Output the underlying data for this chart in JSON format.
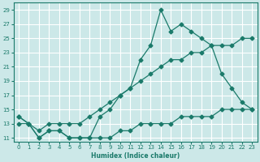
{
  "xlabel": "Humidex (Indice chaleur)",
  "background_color": "#cce8e8",
  "grid_color": "#ffffff",
  "line_color": "#1a7a6a",
  "xlim": [
    -0.5,
    23.5
  ],
  "ylim": [
    10.5,
    30
  ],
  "xticks": [
    0,
    1,
    2,
    3,
    4,
    5,
    6,
    7,
    8,
    9,
    10,
    11,
    12,
    13,
    14,
    15,
    16,
    17,
    18,
    19,
    20,
    21,
    22,
    23
  ],
  "yticks": [
    11,
    13,
    15,
    17,
    19,
    21,
    23,
    25,
    27,
    29
  ],
  "line_zigzag_x": [
    0,
    1,
    2,
    3,
    4,
    5,
    6,
    7,
    8,
    9,
    10,
    11,
    12,
    13,
    14,
    15,
    16,
    17,
    18,
    19,
    20,
    21,
    22,
    23
  ],
  "line_zigzag_y": [
    14,
    13,
    11,
    12,
    12,
    11,
    11,
    11,
    14,
    15,
    17,
    18,
    22,
    24,
    29,
    26,
    27,
    26,
    25,
    24,
    20,
    18,
    16,
    15
  ],
  "line_diagonal_x": [
    0,
    1,
    2,
    3,
    4,
    5,
    6,
    7,
    8,
    9,
    10,
    11,
    12,
    13,
    14,
    15,
    16,
    17,
    18,
    19,
    20,
    21,
    22,
    23
  ],
  "line_diagonal_y": [
    13,
    13,
    12,
    13,
    13,
    13,
    13,
    14,
    15,
    16,
    17,
    18,
    19,
    20,
    21,
    22,
    22,
    23,
    23,
    24,
    24,
    24,
    25,
    25
  ],
  "line_flat_x": [
    0,
    1,
    2,
    3,
    4,
    5,
    6,
    7,
    8,
    9,
    10,
    11,
    12,
    13,
    14,
    15,
    16,
    17,
    18,
    19,
    20,
    21,
    22,
    23
  ],
  "line_flat_y": [
    14,
    13,
    11,
    12,
    12,
    11,
    11,
    11,
    11,
    11,
    12,
    12,
    13,
    13,
    13,
    13,
    14,
    14,
    14,
    14,
    15,
    15,
    15,
    15
  ]
}
